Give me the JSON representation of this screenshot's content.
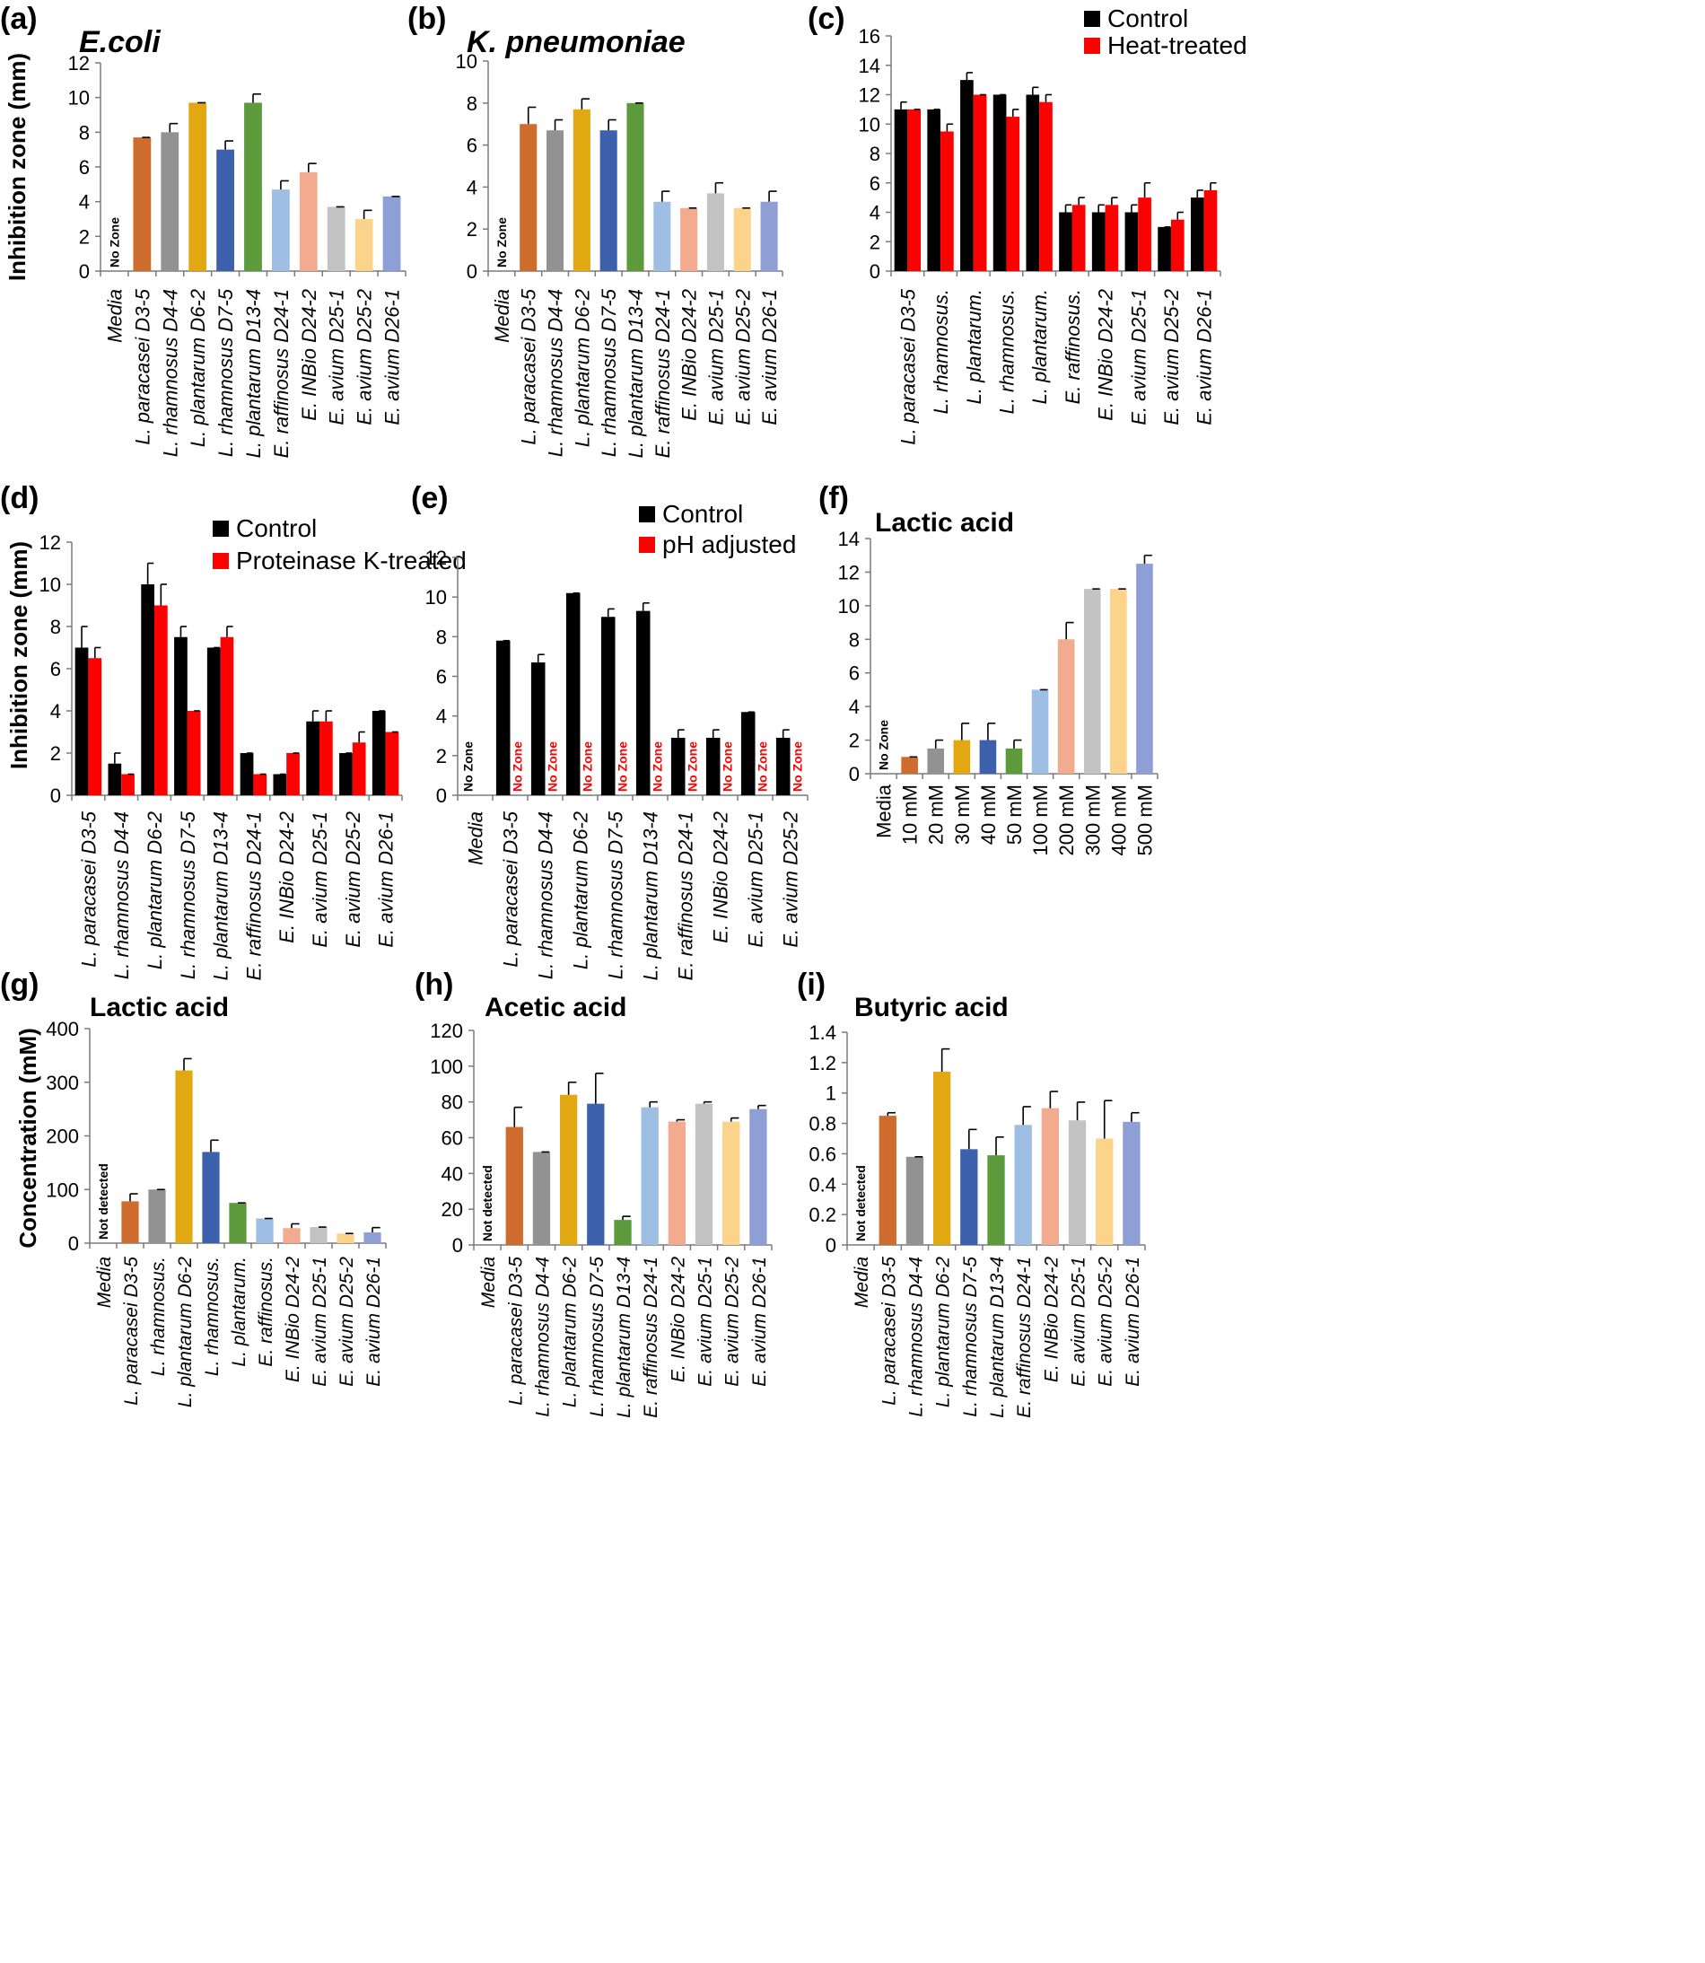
{
  "colors": {
    "orange": "#cd6c2c",
    "gray": "#929292",
    "gold": "#e1a812",
    "blue": "#3c60ab",
    "green": "#5c9a3b",
    "lightblue": "#9ebfe3",
    "salmon": "#f2ab8e",
    "lightgray": "#c3c3c3",
    "lightgold": "#fbd38a",
    "periwinkle": "#8e9fd5",
    "black": "#000000",
    "red": "#ff0000"
  },
  "chart_data": [
    {
      "panel": "(a)",
      "type": "bar",
      "title": "E.coli",
      "ylabel": "Inhibition zone (mm)",
      "ylim": [
        0,
        12
      ],
      "yticks": [
        0,
        2,
        4,
        6,
        8,
        10,
        12
      ],
      "categories": [
        "Media",
        "L. paracasei D3-5",
        "L. rhamnosus D4-4",
        "L. plantarum D6-2",
        "L. rhamnosus D7-5",
        "L. plantarum D13-4",
        "E. raffinosus D24-1",
        "E. INBio D24-2",
        "E. avium D25-1",
        "E. avium D25-2",
        "E. avium D26-1"
      ],
      "series": [
        {
          "name": "",
          "values": [
            0,
            7.7,
            8,
            9.7,
            7,
            9.7,
            4.7,
            5.7,
            3.7,
            3,
            4.3
          ],
          "errors": [
            0,
            0,
            0.5,
            0,
            0.5,
            0.5,
            0.5,
            0.5,
            0,
            0.5,
            0
          ]
        }
      ],
      "annotations": [
        {
          "index": 0,
          "series": 0,
          "text": "No Zone",
          "color": "#000000"
        }
      ]
    },
    {
      "panel": "(b)",
      "type": "bar",
      "title": "K. pneumoniae",
      "ylabel": "",
      "ylim": [
        0,
        10
      ],
      "yticks": [
        0,
        2,
        4,
        6,
        8,
        10
      ],
      "categories": [
        "Media",
        "L. paracasei D3-5",
        "L. rhamnosus D4-4",
        "L. plantarum D6-2",
        "L. rhamnosus D7-5",
        "L. plantarum D13-4",
        "E. raffinosus D24-1",
        "E. INBio D24-2",
        "E. avium D25-1",
        "E. avium D25-2",
        "E. avium D26-1"
      ],
      "series": [
        {
          "name": "",
          "values": [
            0,
            7,
            6.7,
            7.7,
            6.7,
            8,
            3.3,
            3,
            3.7,
            3,
            3.3
          ],
          "errors": [
            0,
            0.8,
            0.5,
            0.5,
            0.5,
            0,
            0.5,
            0,
            0.5,
            0,
            0.5
          ]
        }
      ],
      "annotations": [
        {
          "index": 0,
          "series": 0,
          "text": "No Zone",
          "color": "#000000"
        }
      ]
    },
    {
      "panel": "(c)",
      "type": "bar",
      "title": "",
      "ylabel": "",
      "ylim": [
        0,
        16
      ],
      "yticks": [
        0,
        2,
        4,
        6,
        8,
        10,
        12,
        14,
        16
      ],
      "categories": [
        "L. paracasei D3-5",
        "L. rhamnosus.",
        "L. plantarum.",
        "L. rhamnosus.",
        "L. plantarum.",
        "E. raffinosus.",
        "E. INBio D24-2",
        "E. avium D25-1",
        "E. avium D25-2",
        "E. avium D26-1"
      ],
      "series": [
        {
          "name": "Control",
          "values": [
            11,
            11,
            13,
            12,
            12,
            4,
            4,
            4,
            3,
            5
          ],
          "errors": [
            0.5,
            0,
            0.5,
            0,
            0.5,
            0.5,
            0.5,
            0.5,
            0,
            0.5
          ]
        },
        {
          "name": "Heat-treated",
          "values": [
            11,
            9.5,
            12,
            10.5,
            11.5,
            4.5,
            4.5,
            5,
            3.5,
            5.5
          ],
          "errors": [
            0,
            0.5,
            0,
            0.5,
            0.5,
            0.5,
            0.5,
            1,
            0.5,
            0.5
          ]
        }
      ],
      "legend": [
        "Control",
        "Heat-treated"
      ]
    },
    {
      "panel": "(d)",
      "type": "bar",
      "title": "",
      "ylabel": "Inhibition zone (mm)",
      "ylim": [
        0,
        12
      ],
      "yticks": [
        0,
        2,
        4,
        6,
        8,
        10,
        12
      ],
      "categories": [
        "L. paracasei D3-5",
        "L. rhamnosus D4-4",
        "L. plantarum D6-2",
        "L. rhamnosus D7-5",
        "L. plantarum D13-4",
        "E. raffinosus D24-1",
        "E. INBio D24-2",
        "E. avium D25-1",
        "E. avium D25-2",
        "E. avium D26-1"
      ],
      "series": [
        {
          "name": "Control",
          "values": [
            7,
            1.5,
            10,
            7.5,
            7,
            2,
            1,
            3.5,
            2,
            4
          ],
          "errors": [
            1,
            0.5,
            1,
            0.5,
            0,
            0,
            0,
            0.5,
            0,
            0
          ]
        },
        {
          "name": "Proteinase K-treated",
          "values": [
            6.5,
            1,
            9,
            4,
            7.5,
            1,
            2,
            3.5,
            2.5,
            3
          ],
          "errors": [
            0.5,
            0,
            1,
            0,
            0.5,
            0,
            0,
            0.5,
            0.5,
            0
          ]
        }
      ],
      "legend": [
        "Control",
        "Proteinase K-treated"
      ]
    },
    {
      "panel": "(e)",
      "type": "bar",
      "title": "",
      "ylabel": "",
      "ylim": [
        0,
        12
      ],
      "yticks": [
        0,
        2,
        4,
        6,
        8,
        10,
        12
      ],
      "categories": [
        "Media",
        "L. paracasei D3-5",
        "L. rhamnosus D4-4",
        "L. plantarum D6-2",
        "L. rhamnosus D7-5",
        "L. plantarum D13-4",
        "E. raffinosus D24-1",
        "E. INBio D24-2",
        "E. avium D25-1",
        "E. avium D25-2"
      ],
      "series": [
        {
          "name": "Control",
          "values": [
            0,
            7.8,
            6.7,
            10.2,
            9,
            9.3,
            2.9,
            2.9,
            4.2,
            2.9
          ],
          "errors": [
            0,
            0,
            0.4,
            0,
            0.4,
            0.4,
            0.4,
            0.4,
            0,
            0.4
          ]
        },
        {
          "name": "pH adjusted",
          "values": [
            0,
            0,
            0,
            0,
            0,
            0,
            0,
            0,
            0,
            0
          ],
          "errors": [
            0,
            0,
            0,
            0,
            0,
            0,
            0,
            0,
            0,
            0
          ]
        }
      ],
      "legend": [
        "Control",
        "pH adjusted"
      ],
      "annotations": [
        {
          "index": 0,
          "series": 0,
          "text": "No Zone",
          "color": "#000000"
        },
        {
          "index": 1,
          "series": 1,
          "text": "No Zone",
          "color": "#ff0000"
        },
        {
          "index": 2,
          "series": 1,
          "text": "No Zone",
          "color": "#ff0000"
        },
        {
          "index": 3,
          "series": 1,
          "text": "No Zone",
          "color": "#ff0000"
        },
        {
          "index": 4,
          "series": 1,
          "text": "No Zone",
          "color": "#ff0000"
        },
        {
          "index": 5,
          "series": 1,
          "text": "No Zone",
          "color": "#ff0000"
        },
        {
          "index": 6,
          "series": 1,
          "text": "No Zone",
          "color": "#ff0000"
        },
        {
          "index": 7,
          "series": 1,
          "text": "No Zone",
          "color": "#ff0000"
        },
        {
          "index": 8,
          "series": 1,
          "text": "No Zone",
          "color": "#ff0000"
        },
        {
          "index": 9,
          "series": 1,
          "text": "No Zone",
          "color": "#ff0000"
        }
      ]
    },
    {
      "panel": "(f)",
      "type": "bar",
      "title": "Lactic acid",
      "ylabel": "",
      "ylim": [
        0,
        14
      ],
      "yticks": [
        0,
        2,
        4,
        6,
        8,
        10,
        12,
        14
      ],
      "categories": [
        "Media",
        "10 mM",
        "20 mM",
        "30 mM",
        "40 mM",
        "50 mM",
        "100 mM",
        "200 mM",
        "300 mM",
        "400 mM",
        "500 mM"
      ],
      "series": [
        {
          "name": "",
          "values": [
            0,
            1,
            1.5,
            2,
            2,
            1.5,
            5,
            8,
            11,
            11,
            12.5
          ],
          "errors": [
            0,
            0,
            0.5,
            1,
            1,
            0.5,
            0,
            1,
            0,
            0,
            0.5
          ]
        }
      ],
      "annotations": [
        {
          "index": 0,
          "series": 0,
          "text": "No Zone",
          "color": "#000000"
        }
      ]
    },
    {
      "panel": "(g)",
      "type": "bar",
      "title": "Lactic acid",
      "ylabel": "Concentration (mM)",
      "ylim": [
        0,
        400
      ],
      "yticks": [
        0,
        100,
        200,
        300,
        400
      ],
      "categories": [
        "Media",
        "L. paracasei D3-5",
        "L. rhamnosus.",
        "L. plantarum D6-2",
        "L. rhamnosus.",
        "L. plantarum.",
        "E. raffinosus.",
        "E. INBio D24-2",
        "E. avium D25-1",
        "E. avium D25-2",
        "E. avium D26-1"
      ],
      "series": [
        {
          "name": "",
          "values": [
            0,
            78,
            100,
            322,
            170,
            75,
            46,
            28,
            30,
            18,
            20
          ],
          "errors": [
            0,
            14,
            0,
            22,
            22,
            0,
            0,
            8,
            0,
            0,
            9
          ]
        }
      ],
      "annotations": [
        {
          "index": 0,
          "series": 0,
          "text": "Not detected",
          "color": "#000000"
        }
      ]
    },
    {
      "panel": "(h)",
      "type": "bar",
      "title": "Acetic acid",
      "ylabel": "",
      "ylim": [
        0,
        120
      ],
      "yticks": [
        0,
        20,
        40,
        60,
        80,
        100,
        120
      ],
      "categories": [
        "Media",
        "L. paracasei D3-5",
        "L. rhamnosus D4-4",
        "L. plantarum D6-2",
        "L. rhamnosus D7-5",
        "L. plantarum D13-4",
        "E. raffinosus D24-1",
        "E. INBio D24-2",
        "E. avium D25-1",
        "E. avium D25-2",
        "E. avium D26-1"
      ],
      "series": [
        {
          "name": "",
          "values": [
            0,
            66,
            52,
            84,
            79,
            14,
            77,
            69,
            79,
            69,
            76
          ],
          "errors": [
            0,
            11,
            0,
            7,
            17,
            2,
            3,
            1,
            1,
            2,
            2
          ]
        }
      ],
      "annotations": [
        {
          "index": 0,
          "series": 0,
          "text": "Not detected",
          "color": "#000000"
        }
      ]
    },
    {
      "panel": "(i)",
      "type": "bar",
      "title": "Butyric acid",
      "ylabel": "",
      "ylim": [
        0,
        1.4
      ],
      "yticks": [
        0,
        0.2,
        0.4,
        0.6,
        0.8,
        1,
        1.2,
        1.4
      ],
      "categories": [
        "Media",
        "L. paracasei D3-5",
        "L. rhamnosus D4-4",
        "L. plantarum D6-2",
        "L. rhamnosus D7-5",
        "L. plantarum D13-4",
        "E. raffinosus D24-1",
        "E. INBio D24-2",
        "E. avium D25-1",
        "E. avium D25-2",
        "E. avium D26-1"
      ],
      "series": [
        {
          "name": "",
          "values": [
            0,
            0.85,
            0.58,
            1.14,
            0.63,
            0.59,
            0.79,
            0.9,
            0.82,
            0.7,
            0.81
          ],
          "errors": [
            0,
            0.02,
            0,
            0.15,
            0.13,
            0.12,
            0.12,
            0.11,
            0.12,
            0.25,
            0.06
          ]
        }
      ],
      "annotations": [
        {
          "index": 0,
          "series": 0,
          "text": "Not detected",
          "color": "#000000"
        }
      ]
    }
  ]
}
